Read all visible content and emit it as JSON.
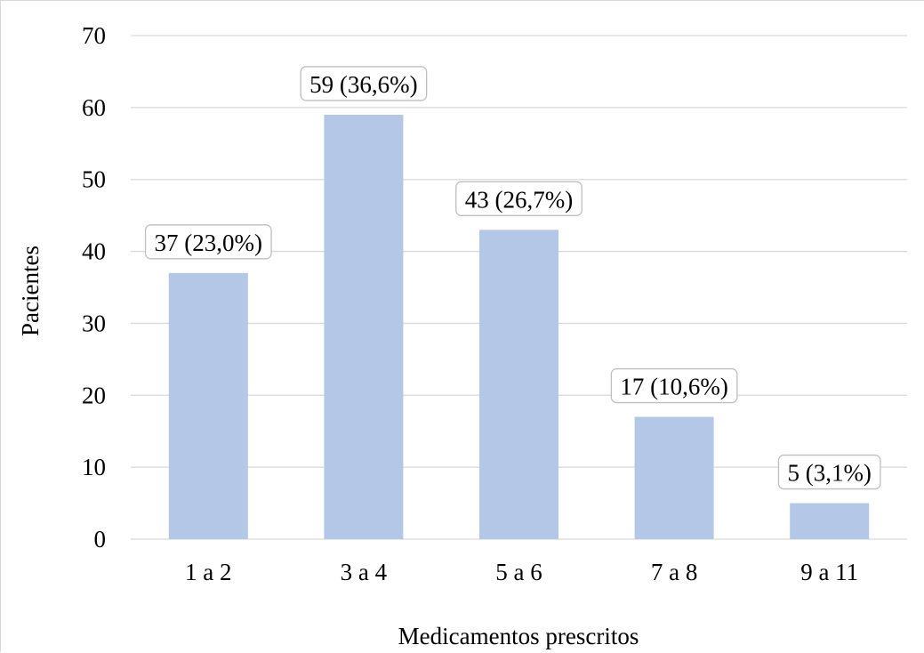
{
  "chart_data": {
    "type": "bar",
    "title": "",
    "xlabel": "Medicamentos prescritos",
    "ylabel": "Pacientes",
    "categories": [
      "1 a 2",
      "3 a 4",
      "5 a 6",
      "7 a 8",
      "9 a 11"
    ],
    "values": [
      37,
      59,
      43,
      17,
      5
    ],
    "data_labels": [
      "37 (23,0%)",
      "59 (36,6%)",
      "43 (26,7%)",
      "17 (10,6%)",
      "5 (3,1%)"
    ],
    "ylim": [
      0,
      70
    ],
    "y_ticks": [
      0,
      10,
      20,
      30,
      40,
      50,
      60,
      70
    ],
    "grid": true,
    "legend": "none",
    "colors": {
      "bar": "#b4c7e7",
      "grid": "#d9d9d9",
      "label_border": "#bfbfbf",
      "text": "#000000"
    }
  }
}
